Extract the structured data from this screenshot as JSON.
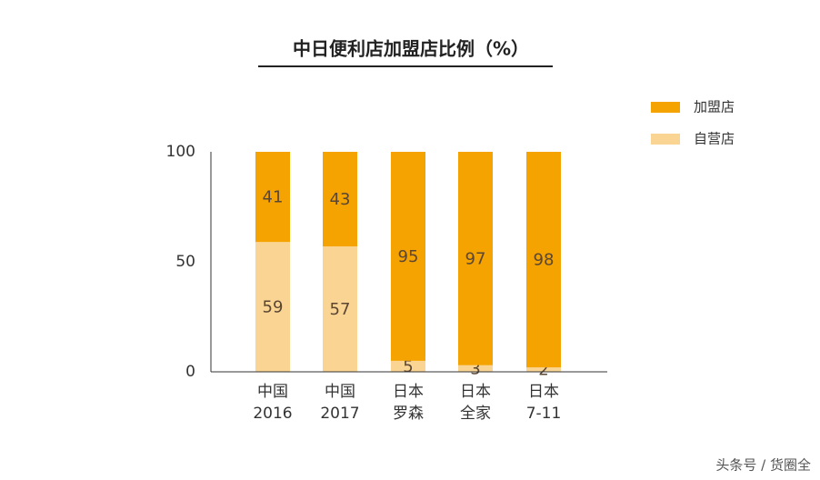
{
  "chart_data": {
    "type": "stacked_bar",
    "title": "中日便利店加盟店比例（%）",
    "categories": [
      [
        "中国",
        "2016"
      ],
      [
        "中国",
        "2017"
      ],
      [
        "日本",
        "罗森"
      ],
      [
        "日本",
        "全家"
      ],
      [
        "日本",
        "7-11"
      ]
    ],
    "series": [
      {
        "name": "加盟店",
        "color": "#f5a300",
        "values": [
          41,
          43,
          95,
          97,
          98
        ]
      },
      {
        "name": "自营店",
        "color": "#fad493",
        "values": [
          59,
          57,
          5,
          3,
          2
        ]
      }
    ],
    "ylim": [
      0,
      100
    ],
    "yticks": [
      0,
      50,
      100
    ],
    "grid": false,
    "legend": "top-right",
    "watermark": "头条号 / 货圈全"
  }
}
